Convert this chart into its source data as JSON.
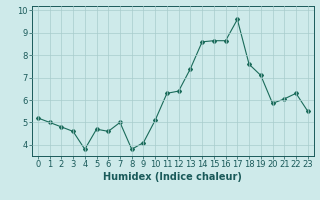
{
  "x": [
    0,
    1,
    2,
    3,
    4,
    5,
    6,
    7,
    8,
    9,
    10,
    11,
    12,
    13,
    14,
    15,
    16,
    17,
    18,
    19,
    20,
    21,
    22,
    23
  ],
  "y": [
    5.2,
    5.0,
    4.8,
    4.6,
    3.8,
    4.7,
    4.6,
    5.0,
    3.8,
    4.1,
    5.1,
    6.3,
    6.4,
    7.4,
    8.6,
    8.65,
    8.65,
    9.6,
    7.6,
    7.1,
    5.85,
    6.05,
    6.3,
    5.5
  ],
  "xlabel": "Humidex (Indice chaleur)",
  "ylim": [
    3.5,
    10.2
  ],
  "xlim": [
    -0.5,
    23.5
  ],
  "line_color": "#1a6b5a",
  "bg_color": "#ceeaea",
  "grid_color": "#a8cccc",
  "tick_fontsize": 6,
  "xlabel_fontsize": 7,
  "yticks": [
    4,
    5,
    6,
    7,
    8,
    9,
    10
  ],
  "xticks": [
    0,
    1,
    2,
    3,
    4,
    5,
    6,
    7,
    8,
    9,
    10,
    11,
    12,
    13,
    14,
    15,
    16,
    17,
    18,
    19,
    20,
    21,
    22,
    23
  ]
}
